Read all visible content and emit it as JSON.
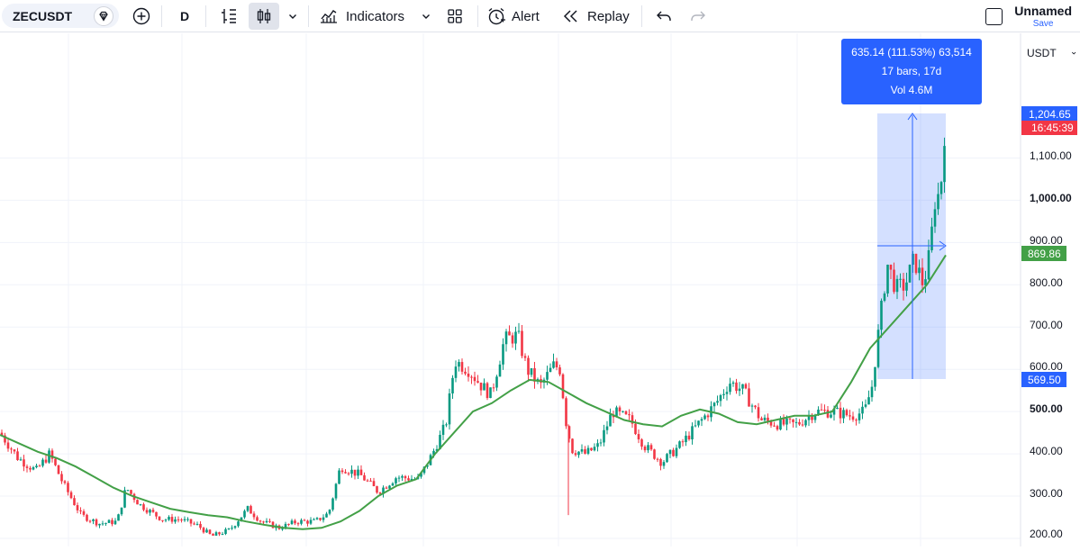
{
  "toolbar": {
    "symbol": "ZECUSDT",
    "interval": "D",
    "indicators_label": "Indicators",
    "alert_label": "Alert",
    "replay_label": "Replay",
    "layout_name": "Unnamed",
    "save_label": "Save"
  },
  "price_axis": {
    "currency": "USDT",
    "ticks": [
      "1,100.00",
      "1,000.00",
      "900.00",
      "800.00",
      "700.00",
      "600.00",
      "500.00",
      "400.00",
      "300.00",
      "200.00"
    ],
    "last_price_label": "1,204.65",
    "countdown_label": "16:45:39",
    "ma_label": "869.86",
    "range_low_label": "569.50",
    "last_price_color": "#f23645",
    "ma_color": "#43a047",
    "range_color": "#2962ff"
  },
  "measure_tooltip": {
    "line1": "635.14 (111.53%) 63,514",
    "line2": "17 bars, 17d",
    "line3": "Vol 4.6M"
  },
  "chart_data": {
    "type": "candlestick",
    "y_axis": {
      "min": 180,
      "max": 1320,
      "unit": "USDT"
    },
    "up_color": "#089981",
    "down_color": "#f23645",
    "ma_series": {
      "color": "#43a047",
      "values": [
        445,
        425,
        405,
        390,
        370,
        345,
        320,
        300,
        285,
        270,
        262,
        255,
        250,
        240,
        232,
        225,
        222,
        225,
        240,
        265,
        300,
        325,
        340,
        400,
        450,
        500,
        520,
        550,
        575,
        570,
        545,
        520,
        500,
        480,
        470,
        465,
        490,
        505,
        495,
        475,
        470,
        480,
        490,
        490,
        500,
        570,
        650,
        700,
        750,
        800,
        870
      ]
    },
    "measure_range": {
      "low": 569.5,
      "high": 1204.65,
      "bars": 17,
      "days": 17,
      "change": 635.14,
      "change_pct": 111.53,
      "volume": "4.6M"
    }
  }
}
